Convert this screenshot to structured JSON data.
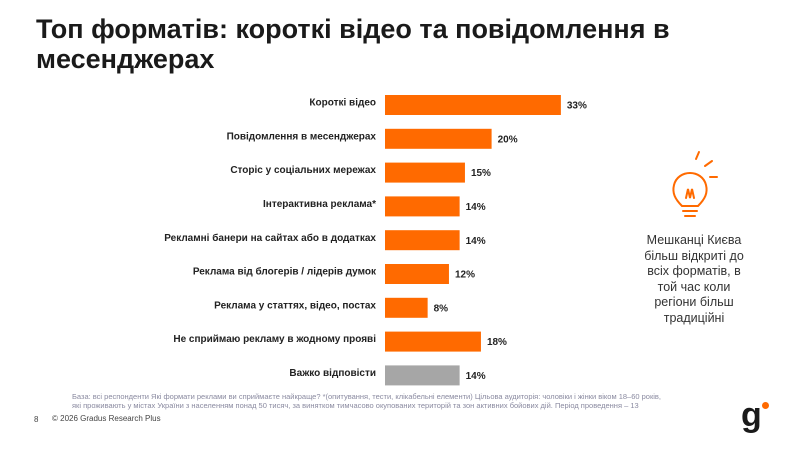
{
  "header": {
    "title": "Топ форматів: короткі відео та повідомлення в месенджерах"
  },
  "chart_data": {
    "type": "bar",
    "orientation": "horizontal",
    "categories": [
      "Короткі відео",
      "Повідомлення в месенджерах",
      "Сторіс у соціальних мережах",
      "Інтерактивна реклама*",
      "Рекламні банери на сайтах або в додатках",
      "Реклама від блогерів / лідерів думок",
      "Реклама у статтях, відео, постах",
      "Не сприймаю рекламу в жодному прояві",
      "Важко відповісти"
    ],
    "values": [
      33,
      20,
      15,
      14,
      14,
      12,
      8,
      18,
      14
    ],
    "value_labels": [
      "33%",
      "20%",
      "15%",
      "14%",
      "14%",
      "12%",
      "8%",
      "18%",
      "14%"
    ],
    "colors": [
      "#ff6a00",
      "#ff6a00",
      "#ff6a00",
      "#ff6a00",
      "#ff6a00",
      "#ff6a00",
      "#ff6a00",
      "#ff6a00",
      "#a6a6a6"
    ]
  },
  "side_note": "Мешканці Києва більш відкриті до всіх форматів, в той час коли регіони більш традиційні",
  "footer": {
    "note": "База: всі респонденти Які формати реклами ви сприймаєте найкраще? *(опитування, тести, клікабельні елементи)   Цільова аудиторія: чоловіки і жінки віком 18–60 років, які проживають у містах України з населенням понад 50 тисяч, за винятком тимчасово окупованих територій та зон активних бойових дій. Період проведення – 13",
    "page": "8",
    "copyright": "© 2026 Gradus Research Plus",
    "logo": "g"
  }
}
